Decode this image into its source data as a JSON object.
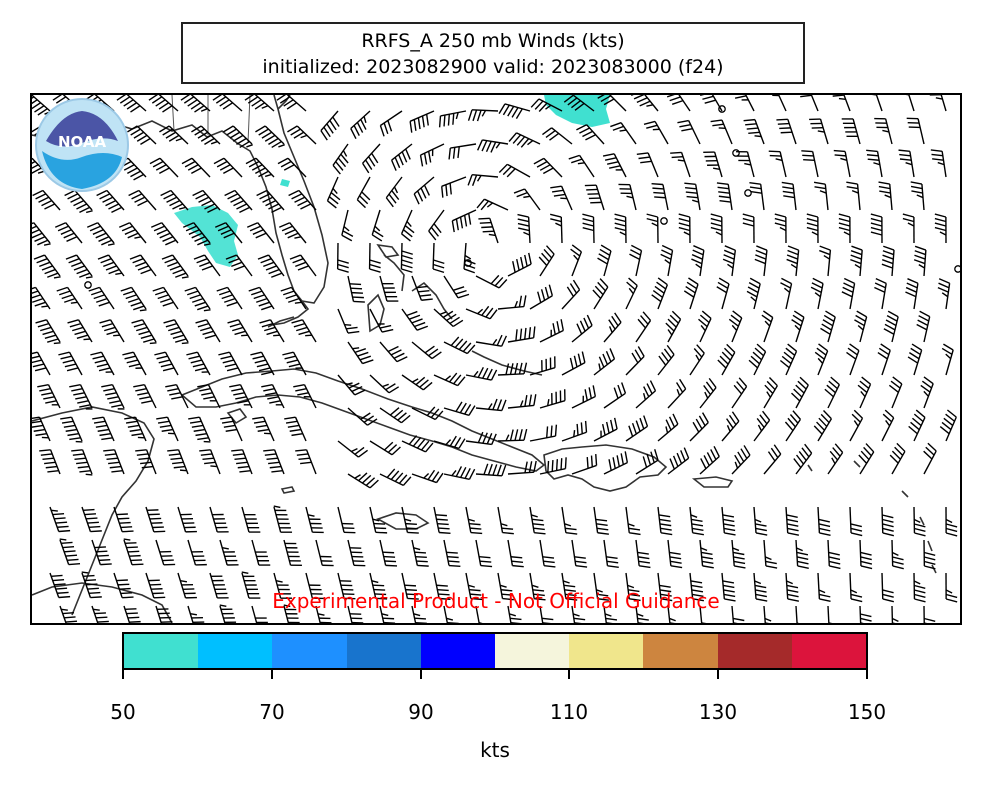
{
  "title": {
    "line1": "RRFS_A 250 mb Winds (kts)",
    "line2": "initialized: 2023082900 valid: 2023083000 (f24)"
  },
  "disclaimer": "Experimental Product - Not Official Guidance",
  "logo": {
    "text": "NOAA",
    "icon": "noaa-logo-icon"
  },
  "colorbar": {
    "label": "kts",
    "min": 50,
    "max": 150,
    "tick_labels": [
      "50",
      "70",
      "90",
      "110",
      "130",
      "150"
    ],
    "bins": [
      {
        "from": 50,
        "to": 60,
        "color": "#40e0d0"
      },
      {
        "from": 60,
        "to": 70,
        "color": "#00bfff"
      },
      {
        "from": 70,
        "to": 80,
        "color": "#1e90ff"
      },
      {
        "from": 80,
        "to": 90,
        "color": "#1874cd"
      },
      {
        "from": 90,
        "to": 100,
        "color": "#0000ff"
      },
      {
        "from": 100,
        "to": 110,
        "color": "#f5f5dc"
      },
      {
        "from": 110,
        "to": 120,
        "color": "#f0e68c"
      },
      {
        "from": 120,
        "to": 130,
        "color": "#cd853f"
      },
      {
        "from": 130,
        "to": 140,
        "color": "#a52a2a"
      },
      {
        "from": 140,
        "to": 150,
        "color": "#dc143c"
      }
    ]
  },
  "map": {
    "region": "Gulf of Mexico, Florida, Cuba, Hispaniola, Caribbean",
    "wind_barbs": "gridded 250 mb wind barbs",
    "highlighted_speed_color": "#40e0d0"
  }
}
